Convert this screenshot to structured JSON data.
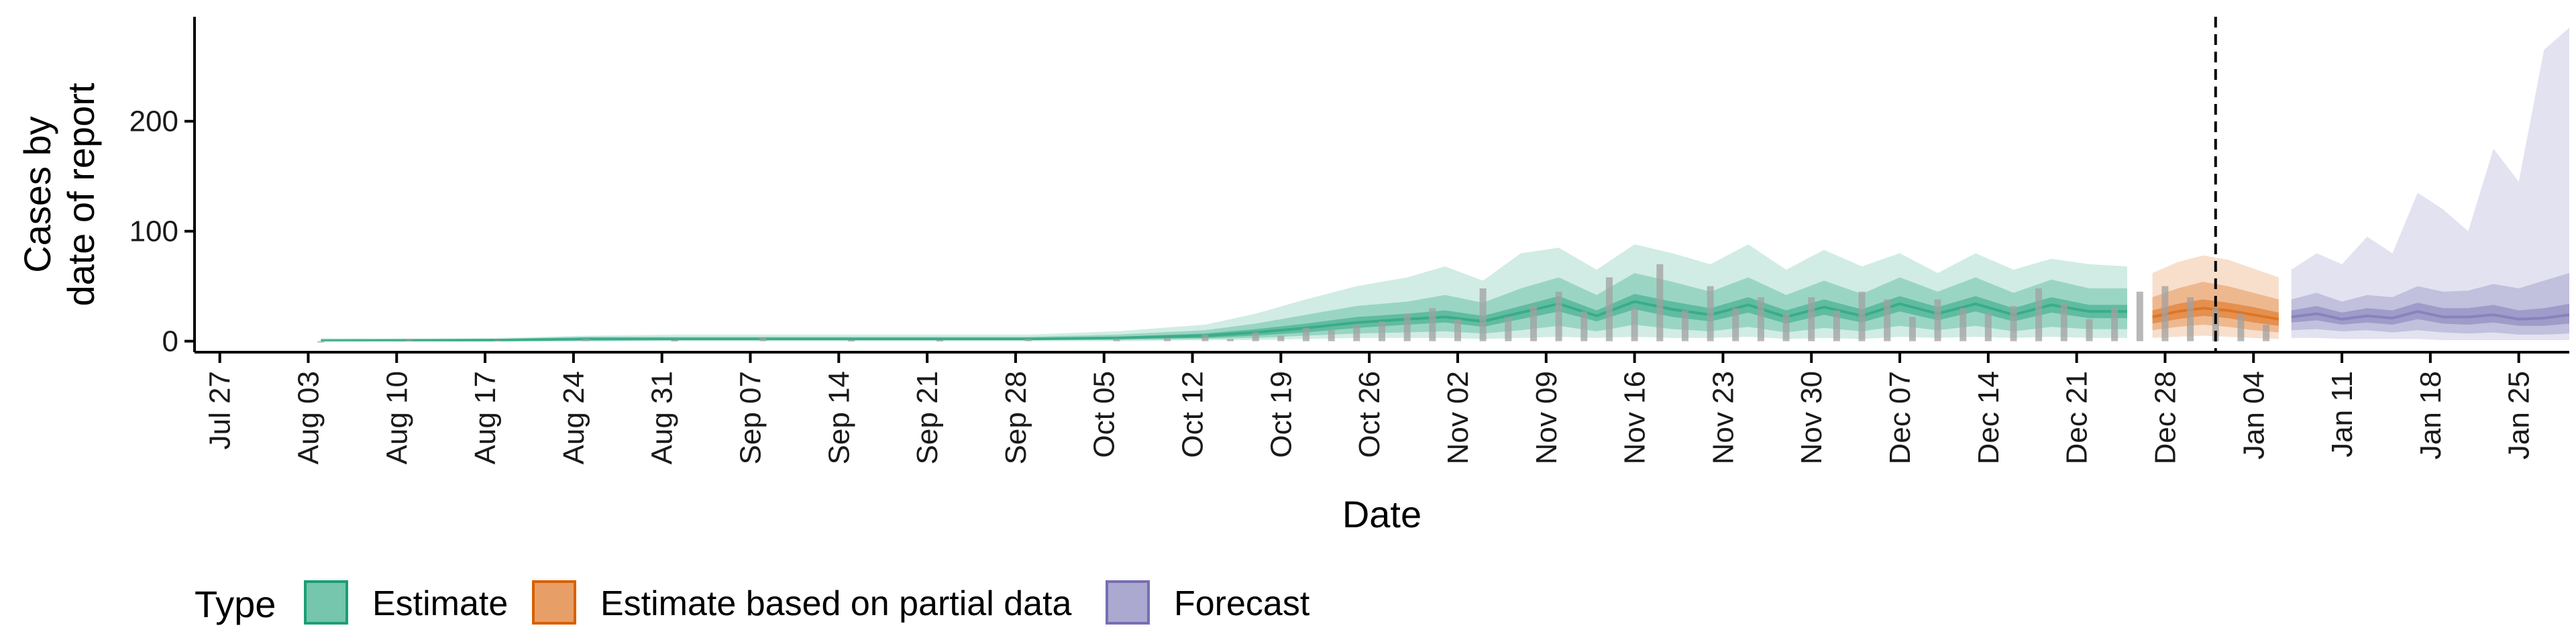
{
  "chart_data": {
    "type": "area",
    "xlabel": "Date",
    "ylabel_lines": [
      "Cases by",
      "date of report"
    ],
    "y_ticks": [
      0,
      100,
      200
    ],
    "ylim": [
      -10,
      295
    ],
    "x_range": [
      "2020-07-25",
      "2021-01-29"
    ],
    "x_ticks": [
      {
        "date": "2020-07-27",
        "label": "Jul 27"
      },
      {
        "date": "2020-08-03",
        "label": "Aug 03"
      },
      {
        "date": "2020-08-10",
        "label": "Aug 10"
      },
      {
        "date": "2020-08-17",
        "label": "Aug 17"
      },
      {
        "date": "2020-08-24",
        "label": "Aug 24"
      },
      {
        "date": "2020-08-31",
        "label": "Aug 31"
      },
      {
        "date": "2020-09-07",
        "label": "Sep 07"
      },
      {
        "date": "2020-09-14",
        "label": "Sep 14"
      },
      {
        "date": "2020-09-21",
        "label": "Sep 21"
      },
      {
        "date": "2020-09-28",
        "label": "Sep 28"
      },
      {
        "date": "2020-10-05",
        "label": "Oct 05"
      },
      {
        "date": "2020-10-12",
        "label": "Oct 12"
      },
      {
        "date": "2020-10-19",
        "label": "Oct 19"
      },
      {
        "date": "2020-10-26",
        "label": "Oct 26"
      },
      {
        "date": "2020-11-02",
        "label": "Nov 02"
      },
      {
        "date": "2020-11-09",
        "label": "Nov 09"
      },
      {
        "date": "2020-11-16",
        "label": "Nov 16"
      },
      {
        "date": "2020-11-23",
        "label": "Nov 23"
      },
      {
        "date": "2020-11-30",
        "label": "Nov 30"
      },
      {
        "date": "2020-12-07",
        "label": "Dec 07"
      },
      {
        "date": "2020-12-14",
        "label": "Dec 14"
      },
      {
        "date": "2020-12-21",
        "label": "Dec 21"
      },
      {
        "date": "2020-12-28",
        "label": "Dec 28"
      },
      {
        "date": "2021-01-04",
        "label": "Jan 04"
      },
      {
        "date": "2021-01-11",
        "label": "Jan 11"
      },
      {
        "date": "2021-01-18",
        "label": "Jan 18"
      },
      {
        "date": "2021-01-25",
        "label": "Jan 25"
      }
    ],
    "forecast_start": "2021-01-01",
    "legend": {
      "title": "Type",
      "position": "bottom-left",
      "items": [
        {
          "label": "Estimate",
          "color": "#1b9e77"
        },
        {
          "label": "Estimate based on partial data",
          "color": "#d95f02"
        },
        {
          "label": "Forecast",
          "color": "#7570b3"
        }
      ]
    },
    "series": [
      {
        "type_label": "Estimate",
        "color": "#1b9e77",
        "x": [
          "2020-08-04",
          "2020-08-11",
          "2020-08-18",
          "2020-08-25",
          "2020-09-01",
          "2020-09-08",
          "2020-09-15",
          "2020-09-22",
          "2020-09-29",
          "2020-10-06",
          "2020-10-13",
          "2020-10-17",
          "2020-10-21",
          "2020-10-25",
          "2020-10-29",
          "2020-11-01",
          "2020-11-04",
          "2020-11-07",
          "2020-11-10",
          "2020-11-13",
          "2020-11-16",
          "2020-11-19",
          "2020-11-22",
          "2020-11-25",
          "2020-11-28",
          "2020-12-01",
          "2020-12-04",
          "2020-12-07",
          "2020-12-10",
          "2020-12-13",
          "2020-12-16",
          "2020-12-19",
          "2020-12-22",
          "2020-12-25"
        ],
        "median": [
          1,
          1,
          1,
          2,
          2,
          2,
          2,
          2,
          2,
          3,
          5,
          8,
          12,
          17,
          20,
          22,
          18,
          26,
          34,
          23,
          36,
          29,
          24,
          33,
          22,
          31,
          23,
          34,
          25,
          34,
          24,
          33,
          27,
          27
        ],
        "inner_lo": [
          0,
          0,
          0,
          1,
          1,
          1,
          1,
          1,
          1,
          2,
          3,
          5,
          8,
          12,
          15,
          17,
          13,
          20,
          27,
          18,
          29,
          22,
          18,
          26,
          16,
          24,
          17,
          27,
          19,
          27,
          18,
          26,
          21,
          21
        ],
        "inner_hi": [
          1,
          1,
          2,
          3,
          3,
          3,
          3,
          3,
          3,
          4,
          7,
          11,
          16,
          22,
          25,
          28,
          23,
          32,
          41,
          28,
          43,
          36,
          30,
          40,
          28,
          38,
          29,
          41,
          31,
          41,
          30,
          40,
          33,
          33
        ],
        "mid_lo": [
          0,
          0,
          0,
          0,
          1,
          1,
          1,
          1,
          1,
          1,
          2,
          3,
          5,
          7,
          8,
          9,
          7,
          10,
          14,
          9,
          15,
          11,
          9,
          13,
          8,
          12,
          9,
          14,
          10,
          14,
          9,
          13,
          11,
          11
        ],
        "mid_hi": [
          1,
          2,
          2,
          4,
          4,
          4,
          4,
          4,
          4,
          6,
          10,
          16,
          24,
          32,
          36,
          42,
          35,
          48,
          58,
          42,
          62,
          54,
          45,
          58,
          42,
          55,
          43,
          58,
          45,
          58,
          44,
          56,
          48,
          48
        ],
        "outer_lo": [
          0,
          0,
          0,
          0,
          0,
          0,
          0,
          0,
          0,
          0,
          1,
          1,
          2,
          3,
          3,
          3,
          2,
          3,
          4,
          3,
          4,
          3,
          3,
          4,
          2,
          3,
          2,
          4,
          3,
          4,
          3,
          4,
          3,
          3
        ],
        "outer_hi": [
          2,
          2,
          3,
          5,
          6,
          6,
          6,
          6,
          6,
          9,
          15,
          25,
          38,
          50,
          58,
          68,
          55,
          80,
          85,
          65,
          88,
          80,
          70,
          88,
          65,
          83,
          68,
          80,
          62,
          80,
          65,
          75,
          70,
          68
        ]
      },
      {
        "type_label": "Estimate based on partial data",
        "color": "#d95f02",
        "x": [
          "2020-12-27",
          "2020-12-29",
          "2020-12-31",
          "2021-01-02",
          "2021-01-04",
          "2021-01-06"
        ],
        "median": [
          22,
          27,
          30,
          28,
          24,
          20
        ],
        "inner_lo": [
          16,
          20,
          23,
          21,
          17,
          14
        ],
        "inner_hi": [
          28,
          34,
          38,
          35,
          31,
          26
        ],
        "mid_lo": [
          10,
          13,
          15,
          13,
          10,
          8
        ],
        "mid_hi": [
          40,
          48,
          54,
          50,
          44,
          38
        ],
        "outer_lo": [
          3,
          4,
          5,
          4,
          3,
          2
        ],
        "outer_hi": [
          62,
          72,
          78,
          74,
          66,
          58
        ]
      },
      {
        "type_label": "Forecast",
        "color": "#7570b3",
        "x": [
          "2021-01-07",
          "2021-01-09",
          "2021-01-11",
          "2021-01-13",
          "2021-01-15",
          "2021-01-17",
          "2021-01-19",
          "2021-01-21",
          "2021-01-23",
          "2021-01-25",
          "2021-01-27",
          "2021-01-29"
        ],
        "median": [
          22,
          25,
          20,
          23,
          21,
          27,
          22,
          22,
          24,
          20,
          21,
          24
        ],
        "inner_lo": [
          17,
          19,
          15,
          17,
          15,
          20,
          16,
          15,
          17,
          14,
          14,
          16
        ],
        "inner_hi": [
          28,
          32,
          26,
          30,
          28,
          35,
          30,
          30,
          33,
          28,
          30,
          34
        ],
        "mid_lo": [
          10,
          11,
          9,
          10,
          8,
          10,
          8,
          7,
          8,
          6,
          6,
          7
        ],
        "mid_hi": [
          38,
          44,
          36,
          42,
          40,
          50,
          45,
          46,
          52,
          48,
          55,
          62
        ],
        "outer_lo": [
          3,
          3,
          2,
          2,
          2,
          2,
          1,
          1,
          1,
          1,
          1,
          1
        ],
        "outer_hi": [
          65,
          80,
          70,
          95,
          80,
          135,
          120,
          100,
          175,
          145,
          265,
          285
        ]
      }
    ],
    "observed": {
      "color": "#a0a0a0",
      "x": [
        "2020-08-04",
        "2020-08-11",
        "2020-08-18",
        "2020-08-25",
        "2020-09-01",
        "2020-09-08",
        "2020-09-15",
        "2020-09-22",
        "2020-09-29",
        "2020-10-06",
        "2020-10-10",
        "2020-10-13",
        "2020-10-15",
        "2020-10-17",
        "2020-10-19",
        "2020-10-21",
        "2020-10-23",
        "2020-10-25",
        "2020-10-27",
        "2020-10-29",
        "2020-10-31",
        "2020-11-02",
        "2020-11-04",
        "2020-11-06",
        "2020-11-08",
        "2020-11-10",
        "2020-11-12",
        "2020-11-14",
        "2020-11-16",
        "2020-11-18",
        "2020-11-20",
        "2020-11-22",
        "2020-11-24",
        "2020-11-26",
        "2020-11-28",
        "2020-11-30",
        "2020-12-02",
        "2020-12-04",
        "2020-12-06",
        "2020-12-08",
        "2020-12-10",
        "2020-12-12",
        "2020-12-14",
        "2020-12-16",
        "2020-12-18",
        "2020-12-20",
        "2020-12-22",
        "2020-12-24",
        "2020-12-26",
        "2020-12-28",
        "2020-12-30",
        "2021-01-01",
        "2021-01-03",
        "2021-01-05"
      ],
      "values": [
        0,
        1,
        1,
        2,
        1,
        3,
        1,
        1,
        2,
        2,
        3,
        6,
        2,
        8,
        5,
        12,
        10,
        15,
        18,
        25,
        30,
        20,
        48,
        22,
        32,
        45,
        27,
        58,
        30,
        70,
        28,
        50,
        30,
        40,
        25,
        40,
        28,
        45,
        38,
        22,
        38,
        30,
        26,
        32,
        48,
        35,
        20,
        30,
        45,
        50,
        40,
        30,
        25,
        15
      ]
    }
  }
}
